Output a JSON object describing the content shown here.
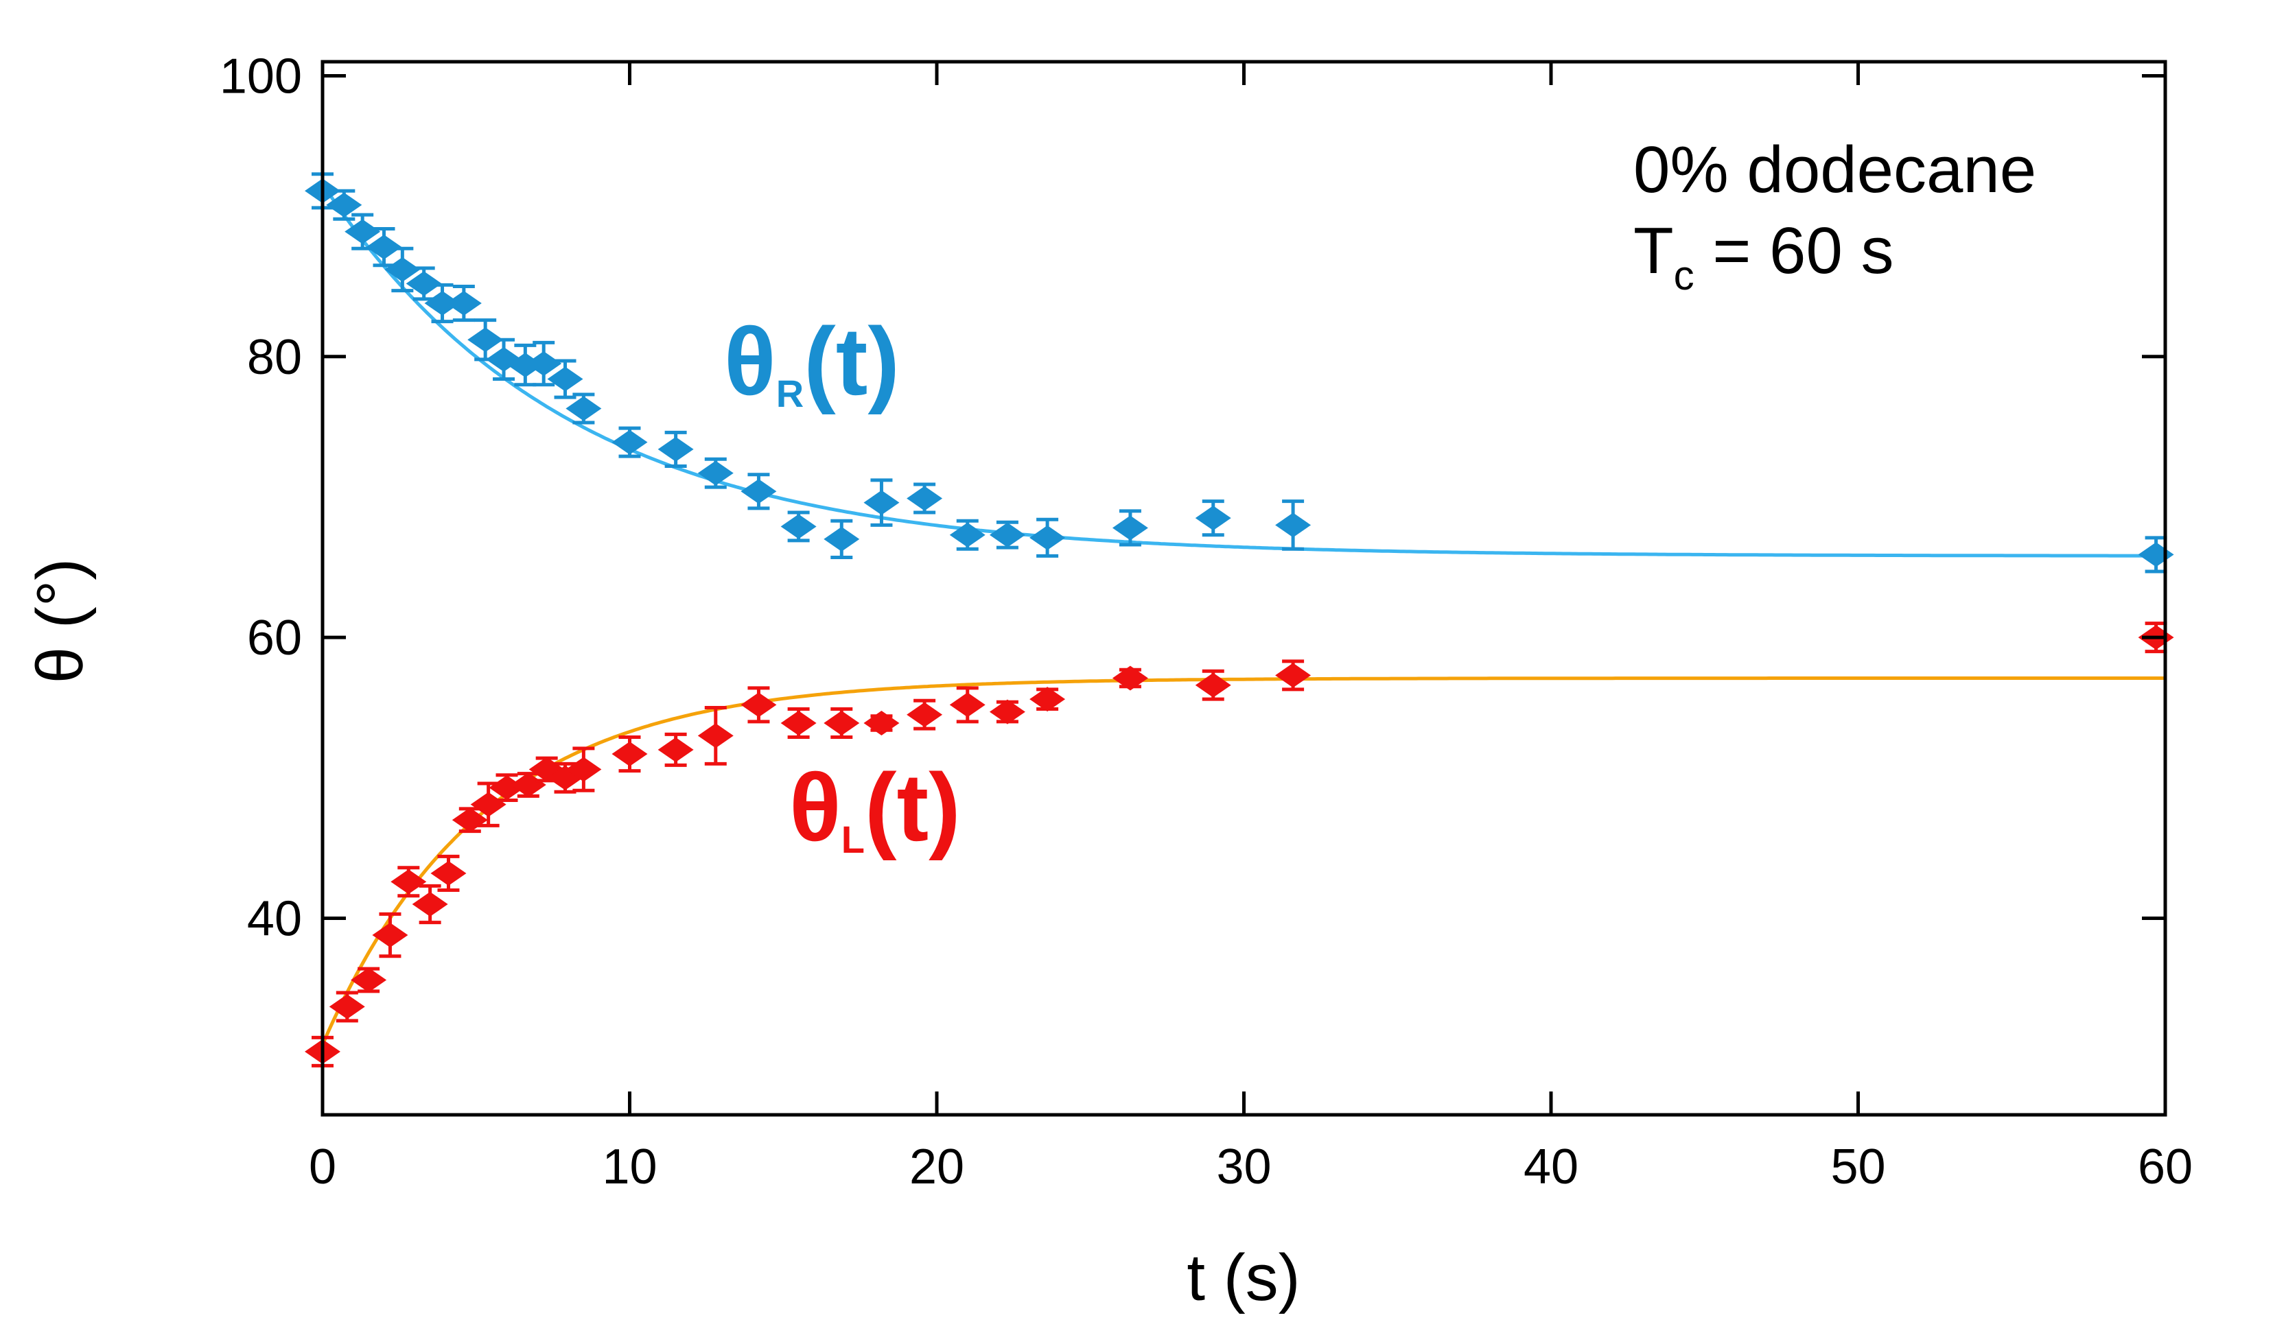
{
  "chart_data": {
    "type": "scatter",
    "title": "",
    "xlabel": "t (s)",
    "ylabel": "θ (°)",
    "xlim": [
      0,
      60
    ],
    "ylim": [
      26,
      101
    ],
    "xticks": [
      "0",
      "10",
      "20",
      "30",
      "40",
      "50",
      "60"
    ],
    "yticks": [
      "40",
      "60",
      "80",
      "100"
    ],
    "annotation": {
      "line1": "0% dodecane",
      "line2_main": "T",
      "line2_sub": "c",
      "line2_rest": " = 60 s"
    },
    "series": [
      {
        "name": "θR(t)",
        "label_main": "θ",
        "label_sub": "R",
        "label_rest": "(t)",
        "color": "#1a8fd1",
        "fit_color": "#3bb5f0",
        "fit": {
          "y_inf": 65.8,
          "y0": 92.3,
          "tau": 8.0
        },
        "x": [
          0,
          0.7,
          1.3,
          2.0,
          2.6,
          3.3,
          3.9,
          4.6,
          5.3,
          5.9,
          6.6,
          7.2,
          7.9,
          8.5,
          10.0,
          11.5,
          12.8,
          14.2,
          15.5,
          16.9,
          18.2,
          19.6,
          21.0,
          22.3,
          23.6,
          26.3,
          29.0,
          31.6,
          59.7
        ],
        "y": [
          91.8,
          90.8,
          88.9,
          87.8,
          86.2,
          85.2,
          83.8,
          83.8,
          81.2,
          79.8,
          79.4,
          79.5,
          78.4,
          76.3,
          73.9,
          73.4,
          71.7,
          70.4,
          67.9,
          67.0,
          69.6,
          69.9,
          67.3,
          67.3,
          67.1,
          67.8,
          68.5,
          68.0,
          65.9
        ],
        "err": [
          1.2,
          1.0,
          1.2,
          1.3,
          1.5,
          1.1,
          1.3,
          1.2,
          1.4,
          1.4,
          1.4,
          1.5,
          1.3,
          1.0,
          1.0,
          1.2,
          1.0,
          1.2,
          1.0,
          1.3,
          1.6,
          1.0,
          1.0,
          0.9,
          1.3,
          1.2,
          1.2,
          1.7,
          1.2
        ]
      },
      {
        "name": "θL(t)",
        "label_main": "θ",
        "label_sub": "L",
        "label_rest": "(t)",
        "color": "#ee1111",
        "fit_color": "#f5a20a",
        "fit": {
          "y_inf": 57.1,
          "y0": 31.0,
          "tau": 5.2
        },
        "x": [
          0,
          0.8,
          1.5,
          2.2,
          2.8,
          3.5,
          4.1,
          4.8,
          5.4,
          6.0,
          6.7,
          7.3,
          7.9,
          8.5,
          10.0,
          11.5,
          12.8,
          14.2,
          15.5,
          16.9,
          18.2,
          19.6,
          21.0,
          22.3,
          23.6,
          26.3,
          29.0,
          31.6,
          59.7
        ],
        "y": [
          30.5,
          33.7,
          35.6,
          38.8,
          42.6,
          41.0,
          43.2,
          47.0,
          48.1,
          49.3,
          49.5,
          50.6,
          50.0,
          50.6,
          51.7,
          52.0,
          53.0,
          55.2,
          53.9,
          53.9,
          53.9,
          54.5,
          55.2,
          54.7,
          55.6,
          57.1,
          56.6,
          57.3,
          60.0
        ],
        "err": [
          1.0,
          1.0,
          0.8,
          1.5,
          1.0,
          1.3,
          1.2,
          0.8,
          1.5,
          0.9,
          0.8,
          0.8,
          1.0,
          1.5,
          1.2,
          1.1,
          2.0,
          1.2,
          1.0,
          1.0,
          0.5,
          1.0,
          1.2,
          0.7,
          0.7,
          0.6,
          1.0,
          1.0,
          1.0
        ]
      }
    ]
  }
}
